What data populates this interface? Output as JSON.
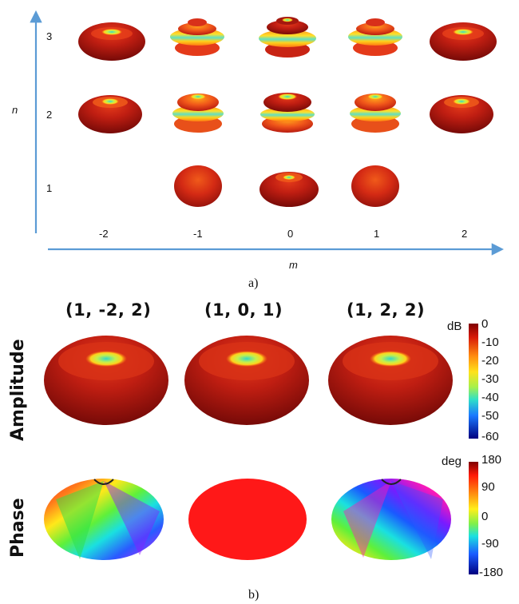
{
  "panel_a": {
    "axis_n_label": "n",
    "axis_m_label": "m",
    "n_ticks": [
      "3",
      "2",
      "1"
    ],
    "m_ticks": [
      "-2",
      "-1",
      "0",
      "1",
      "2"
    ],
    "caption": "a)",
    "axis_color": "#5b9bd5"
  },
  "panel_b": {
    "caption": "b)",
    "column_headers": [
      "(1, -2, 2)",
      "(1, 0, 1)",
      "(1, 2, 2)"
    ],
    "row_labels": [
      "Amplitude",
      "Phase"
    ],
    "amplitude_colorbar": {
      "unit": "dB",
      "ticks": [
        "0",
        "-10",
        "-20",
        "-30",
        "-40",
        "-50",
        "-60"
      ],
      "range": [
        -60,
        0
      ]
    },
    "phase_colorbar": {
      "unit": "deg",
      "ticks": [
        "180",
        "90",
        "0",
        "-90",
        "-180"
      ],
      "range": [
        -180,
        180
      ]
    }
  }
}
